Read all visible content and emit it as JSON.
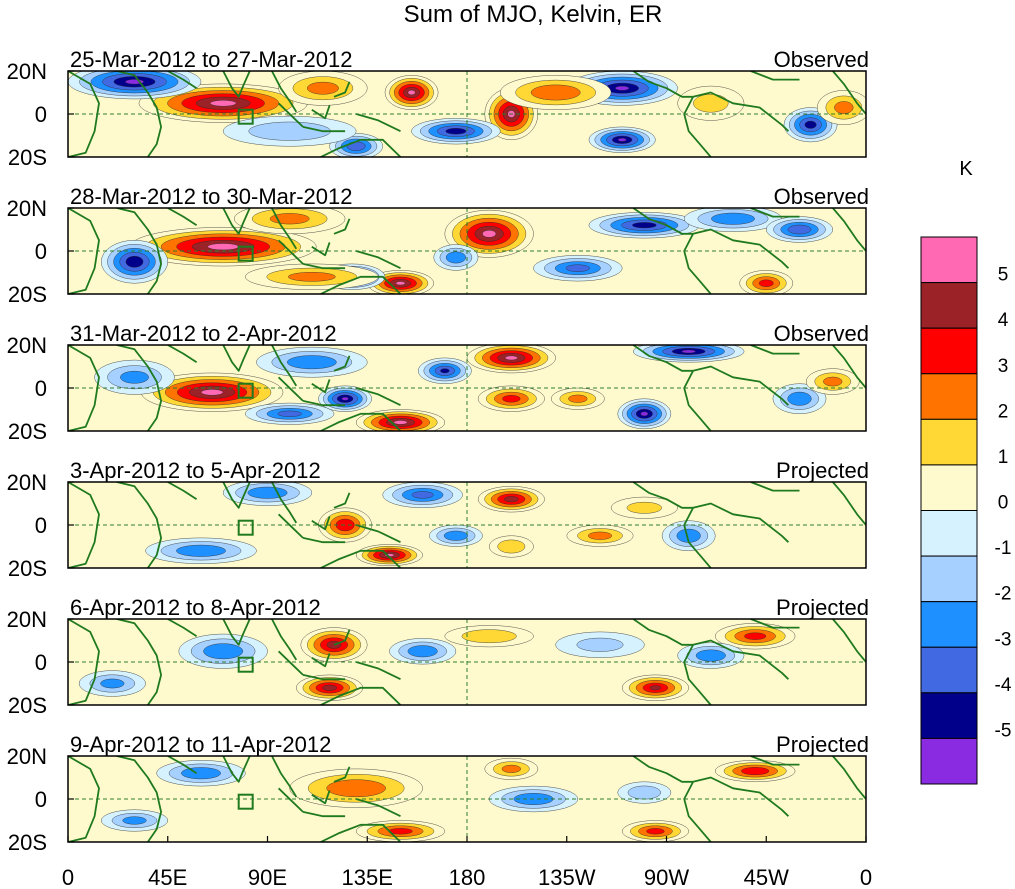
{
  "chart_data": {
    "type": "heatmap",
    "title": "Sum of MJO, Kelvin, ER",
    "units": "K",
    "lat_ticks": [
      "20N",
      "0",
      "20S"
    ],
    "lon_ticks": [
      "0",
      "45E",
      "90E",
      "135E",
      "180",
      "135W",
      "90W",
      "45W",
      "0"
    ],
    "lon_range": [
      0,
      360
    ],
    "lat_range": [
      -20,
      20
    ],
    "colorbar": {
      "labels": [
        "5",
        "4",
        "3",
        "2",
        "1",
        "0",
        "-1",
        "-2",
        "-3",
        "-4",
        "-5"
      ],
      "colors": [
        "#FF69B4",
        "#9B2226",
        "#FF0000",
        "#FF7400",
        "#FFD835",
        "#FFFACD",
        "#D6F2FF",
        "#A6D0FF",
        "#1E90FF",
        "#4169E1",
        "#00008B",
        "#8A2BE2"
      ]
    },
    "panels": [
      {
        "date": "25-Mar-2012 to 27-Mar-2012",
        "status": "Observed",
        "blobs": [
          {
            "lon": 70,
            "lat": 5,
            "w": 38,
            "h": 9,
            "v": 5.3
          },
          {
            "lon": 155,
            "lat": 10,
            "w": 12,
            "h": 8,
            "v": 5.2
          },
          {
            "lon": 200,
            "lat": 0,
            "w": 12,
            "h": 12,
            "v": 5.2
          },
          {
            "lon": 30,
            "lat": 15,
            "w": 30,
            "h": 8,
            "v": -5.2
          },
          {
            "lon": 250,
            "lat": 12,
            "w": 25,
            "h": 8,
            "v": -5.1
          },
          {
            "lon": 175,
            "lat": -8,
            "w": 20,
            "h": 6,
            "v": -4.6
          },
          {
            "lon": 250,
            "lat": -12,
            "w": 15,
            "h": 6,
            "v": -5.1
          },
          {
            "lon": 335,
            "lat": -5,
            "w": 12,
            "h": 8,
            "v": -4.5
          },
          {
            "lon": 130,
            "lat": -15,
            "w": 12,
            "h": 6,
            "v": -4.0
          },
          {
            "lon": 115,
            "lat": 12,
            "w": 20,
            "h": 8,
            "v": 2.5
          },
          {
            "lon": 220,
            "lat": 10,
            "w": 25,
            "h": 8,
            "v": 3.0
          },
          {
            "lon": 290,
            "lat": 5,
            "w": 15,
            "h": 8,
            "v": 1.5
          },
          {
            "lon": 100,
            "lat": -8,
            "w": 30,
            "h": 7,
            "v": -2.0
          },
          {
            "lon": 350,
            "lat": 3,
            "w": 12,
            "h": 8,
            "v": 2.5
          }
        ]
      },
      {
        "date": "28-Mar-2012 to 30-Mar-2012",
        "status": "Observed",
        "blobs": [
          {
            "lon": 70,
            "lat": 2,
            "w": 42,
            "h": 9,
            "v": 5.4
          },
          {
            "lon": 190,
            "lat": 8,
            "w": 20,
            "h": 11,
            "v": 5.3
          },
          {
            "lon": 150,
            "lat": -15,
            "w": 15,
            "h": 6,
            "v": 5.2
          },
          {
            "lon": 30,
            "lat": -5,
            "w": 15,
            "h": 10,
            "v": -4.8
          },
          {
            "lon": 128,
            "lat": -12,
            "w": 15,
            "h": 6,
            "v": -5.1
          },
          {
            "lon": 175,
            "lat": -3,
            "w": 10,
            "h": 6,
            "v": -3.0
          },
          {
            "lon": 260,
            "lat": 12,
            "w": 25,
            "h": 6,
            "v": -4.5
          },
          {
            "lon": 230,
            "lat": -8,
            "w": 20,
            "h": 6,
            "v": -3.5
          },
          {
            "lon": 300,
            "lat": 15,
            "w": 22,
            "h": 6,
            "v": -3.0
          },
          {
            "lon": 330,
            "lat": 10,
            "w": 15,
            "h": 6,
            "v": -4.0
          },
          {
            "lon": 315,
            "lat": -15,
            "w": 12,
            "h": 6,
            "v": 3.5
          },
          {
            "lon": 100,
            "lat": 15,
            "w": 25,
            "h": 7,
            "v": 2.5
          },
          {
            "lon": 110,
            "lat": -12,
            "w": 30,
            "h": 6,
            "v": 2.5
          }
        ]
      },
      {
        "date": "31-Mar-2012 to 2-Apr-2012",
        "status": "Observed",
        "blobs": [
          {
            "lon": 65,
            "lat": -2,
            "w": 32,
            "h": 9,
            "v": 5.3
          },
          {
            "lon": 200,
            "lat": 14,
            "w": 20,
            "h": 7,
            "v": 5.2
          },
          {
            "lon": 150,
            "lat": -16,
            "w": 20,
            "h": 6,
            "v": 5.3
          },
          {
            "lon": 125,
            "lat": -5,
            "w": 12,
            "h": 6,
            "v": -5.1
          },
          {
            "lon": 170,
            "lat": 8,
            "w": 12,
            "h": 6,
            "v": -4.2
          },
          {
            "lon": 280,
            "lat": 17,
            "w": 25,
            "h": 5,
            "v": -5.1
          },
          {
            "lon": 260,
            "lat": -12,
            "w": 12,
            "h": 7,
            "v": -5.2
          },
          {
            "lon": 330,
            "lat": -5,
            "w": 12,
            "h": 7,
            "v": -3.0
          },
          {
            "lon": 30,
            "lat": 5,
            "w": 18,
            "h": 8,
            "v": -2.5
          },
          {
            "lon": 110,
            "lat": 12,
            "w": 25,
            "h": 7,
            "v": -3.0
          },
          {
            "lon": 200,
            "lat": -5,
            "w": 15,
            "h": 6,
            "v": 3.5
          },
          {
            "lon": 230,
            "lat": -5,
            "w": 12,
            "h": 5,
            "v": 2.5
          },
          {
            "lon": 345,
            "lat": 3,
            "w": 12,
            "h": 6,
            "v": 2.5
          },
          {
            "lon": 100,
            "lat": -12,
            "w": 20,
            "h": 5,
            "v": -3.5
          }
        ]
      },
      {
        "date": "3-Apr-2012 to 5-Apr-2012",
        "status": "Projected",
        "blobs": [
          {
            "lon": 200,
            "lat": 12,
            "w": 15,
            "h": 6,
            "v": 4.5
          },
          {
            "lon": 145,
            "lat": -14,
            "w": 15,
            "h": 5,
            "v": 5.2
          },
          {
            "lon": 125,
            "lat": 0,
            "w": 12,
            "h": 8,
            "v": 4.0
          },
          {
            "lon": 90,
            "lat": 15,
            "w": 20,
            "h": 6,
            "v": -3.0
          },
          {
            "lon": 160,
            "lat": 14,
            "w": 18,
            "h": 6,
            "v": -3.5
          },
          {
            "lon": 60,
            "lat": -12,
            "w": 25,
            "h": 6,
            "v": -3.0
          },
          {
            "lon": 175,
            "lat": -5,
            "w": 12,
            "h": 5,
            "v": -3.0
          },
          {
            "lon": 280,
            "lat": -5,
            "w": 12,
            "h": 7,
            "v": -3.0
          },
          {
            "lon": 240,
            "lat": -5,
            "w": 15,
            "h": 5,
            "v": 2.5
          },
          {
            "lon": 260,
            "lat": 8,
            "w": 15,
            "h": 5,
            "v": 1.5
          },
          {
            "lon": 200,
            "lat": -10,
            "w": 10,
            "h": 5,
            "v": 2.0
          }
        ]
      },
      {
        "date": "6-Apr-2012 to 8-Apr-2012",
        "status": "Projected",
        "blobs": [
          {
            "lon": 120,
            "lat": 8,
            "w": 15,
            "h": 8,
            "v": 4.5
          },
          {
            "lon": 118,
            "lat": -12,
            "w": 15,
            "h": 6,
            "v": 4.5
          },
          {
            "lon": 265,
            "lat": -12,
            "w": 15,
            "h": 6,
            "v": 4.2
          },
          {
            "lon": 310,
            "lat": 12,
            "w": 18,
            "h": 6,
            "v": 3.5
          },
          {
            "lon": 70,
            "lat": 5,
            "w": 20,
            "h": 8,
            "v": -3.0
          },
          {
            "lon": 160,
            "lat": 5,
            "w": 15,
            "h": 6,
            "v": -3.0
          },
          {
            "lon": 290,
            "lat": 3,
            "w": 15,
            "h": 6,
            "v": -3.0
          },
          {
            "lon": 20,
            "lat": -10,
            "w": 15,
            "h": 6,
            "v": -2.5
          },
          {
            "lon": 240,
            "lat": 8,
            "w": 20,
            "h": 6,
            "v": -1.5
          },
          {
            "lon": 190,
            "lat": 12,
            "w": 20,
            "h": 5,
            "v": 2.0
          }
        ]
      },
      {
        "date": "9-Apr-2012 to 11-Apr-2012",
        "status": "Projected",
        "blobs": [
          {
            "lon": 130,
            "lat": 5,
            "w": 30,
            "h": 9,
            "v": 3.0
          },
          {
            "lon": 150,
            "lat": -15,
            "w": 20,
            "h": 5,
            "v": 3.5
          },
          {
            "lon": 265,
            "lat": -15,
            "w": 15,
            "h": 5,
            "v": 3.5
          },
          {
            "lon": 310,
            "lat": 13,
            "w": 18,
            "h": 5,
            "v": 4.0
          },
          {
            "lon": 60,
            "lat": 12,
            "w": 20,
            "h": 6,
            "v": -3.0
          },
          {
            "lon": 210,
            "lat": 0,
            "w": 20,
            "h": 6,
            "v": -3.0
          },
          {
            "lon": 260,
            "lat": 3,
            "w": 12,
            "h": 5,
            "v": -2.0
          },
          {
            "lon": 200,
            "lat": 14,
            "w": 12,
            "h": 5,
            "v": 2.5
          },
          {
            "lon": 30,
            "lat": -10,
            "w": 15,
            "h": 5,
            "v": -2.5
          }
        ]
      }
    ]
  }
}
